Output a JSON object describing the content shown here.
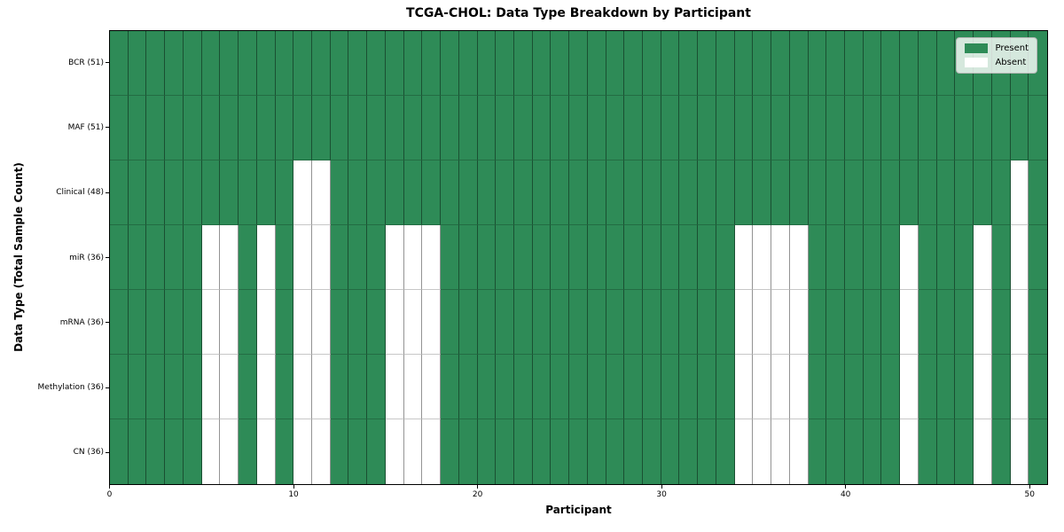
{
  "chart_data": {
    "type": "heatmap",
    "title": "TCGA-CHOL: Data Type Breakdown by Participant",
    "xlabel": "Participant",
    "ylabel": "Data Type (Total Sample Count)",
    "n_participants": 51,
    "xlim": [
      0,
      51
    ],
    "x_ticks": [
      0,
      10,
      20,
      30,
      40,
      50
    ],
    "x_tick_labels": [
      "0",
      "10",
      "20",
      "30",
      "40",
      "50"
    ],
    "grid": true,
    "categories": [
      "BCR (51)",
      "MAF (51)",
      "Clinical (48)",
      "miR (36)",
      "mRNA (36)",
      "Methylation (36)",
      "CN (36)"
    ],
    "rows": [
      {
        "label": "BCR (51)",
        "data_type": "BCR",
        "total_present": 51,
        "absent_participants": []
      },
      {
        "label": "MAF (51)",
        "data_type": "MAF",
        "total_present": 51,
        "absent_participants": []
      },
      {
        "label": "Clinical (48)",
        "data_type": "Clinical",
        "total_present": 48,
        "absent_participants": [
          10,
          11,
          49
        ]
      },
      {
        "label": "miR (36)",
        "data_type": "miR",
        "total_present": 36,
        "absent_participants": [
          5,
          6,
          8,
          10,
          11,
          15,
          16,
          17,
          34,
          35,
          36,
          37,
          43,
          47,
          49
        ]
      },
      {
        "label": "mRNA (36)",
        "data_type": "mRNA",
        "total_present": 36,
        "absent_participants": [
          5,
          6,
          8,
          10,
          11,
          15,
          16,
          17,
          34,
          35,
          36,
          37,
          43,
          47,
          49
        ]
      },
      {
        "label": "Methylation (36)",
        "data_type": "Methylation",
        "total_present": 36,
        "absent_participants": [
          5,
          6,
          8,
          10,
          11,
          15,
          16,
          17,
          34,
          35,
          36,
          37,
          43,
          47,
          49
        ]
      },
      {
        "label": "CN (36)",
        "data_type": "CN",
        "total_present": 36,
        "absent_participants": [
          5,
          6,
          8,
          10,
          11,
          15,
          16,
          17,
          34,
          35,
          36,
          37,
          43,
          47,
          49
        ]
      }
    ],
    "colors": {
      "present": "#2e8b57",
      "absent": "#ffffff"
    },
    "legend": {
      "position": "upper right",
      "entries": [
        {
          "label": "Present",
          "color": "#2e8b57"
        },
        {
          "label": "Absent",
          "color": "#ffffff"
        }
      ]
    }
  }
}
